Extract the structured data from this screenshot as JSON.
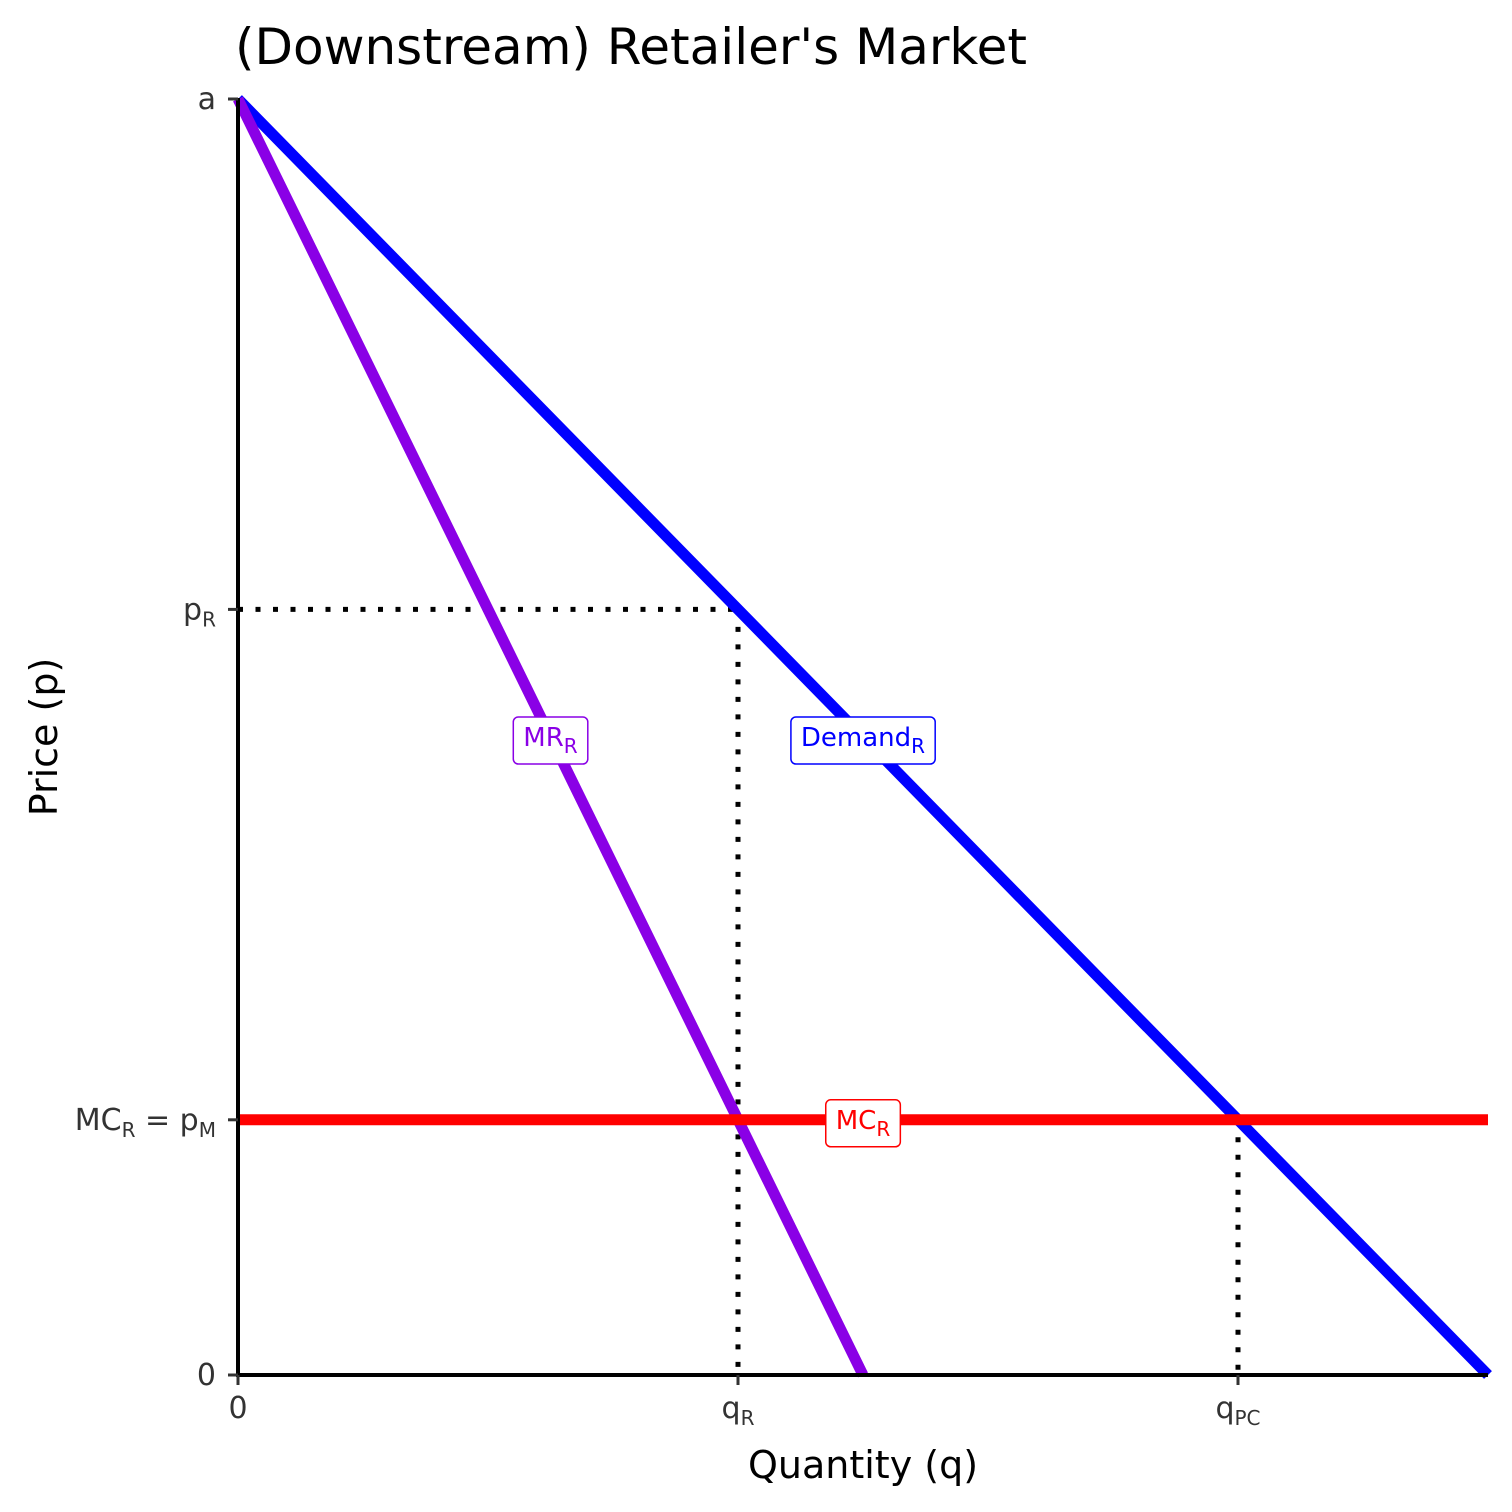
{
  "chart_data": {
    "type": "line",
    "title": "(Downstream) Retailer's Market",
    "xlabel": "Quantity (q)",
    "ylabel": "Price (p)",
    "xlim": [
      0,
      10
    ],
    "ylim": [
      0,
      10
    ],
    "x_ticks": [
      {
        "value": 0,
        "label": "0",
        "sub": ""
      },
      {
        "value": 4,
        "label": "q",
        "sub": "R"
      },
      {
        "value": 8,
        "label": "q",
        "sub": "PC"
      }
    ],
    "y_ticks": [
      {
        "value": 0,
        "label": "0",
        "sub": "",
        "rest": ""
      },
      {
        "value": 2,
        "label": "MC",
        "sub": "R",
        "rest": " = p",
        "sub2": "M"
      },
      {
        "value": 6,
        "label": "p",
        "sub": "R",
        "rest": ""
      },
      {
        "value": 10,
        "label": "a",
        "sub": "",
        "rest": ""
      }
    ],
    "series": [
      {
        "name": "Demand",
        "name_sub": "R",
        "color": "#0000ff",
        "x": [
          0,
          10
        ],
        "y": [
          10,
          0
        ],
        "label_at": [
          5,
          5
        ]
      },
      {
        "name": "MR",
        "name_sub": "R",
        "color": "#8a00e6",
        "x": [
          0,
          5
        ],
        "y": [
          10,
          0
        ],
        "label_at": [
          2.5,
          5
        ]
      },
      {
        "name": "MC",
        "name_sub": "R",
        "color": "#ff0000",
        "x": [
          0,
          10
        ],
        "y": [
          2,
          2
        ],
        "label_at": [
          5,
          2
        ]
      }
    ],
    "reference_lines": [
      {
        "x": [
          0,
          4
        ],
        "y": [
          6,
          6
        ]
      },
      {
        "x": [
          4,
          4
        ],
        "y": [
          6,
          0
        ]
      },
      {
        "x": [
          8,
          8
        ],
        "y": [
          2,
          0
        ]
      }
    ]
  }
}
